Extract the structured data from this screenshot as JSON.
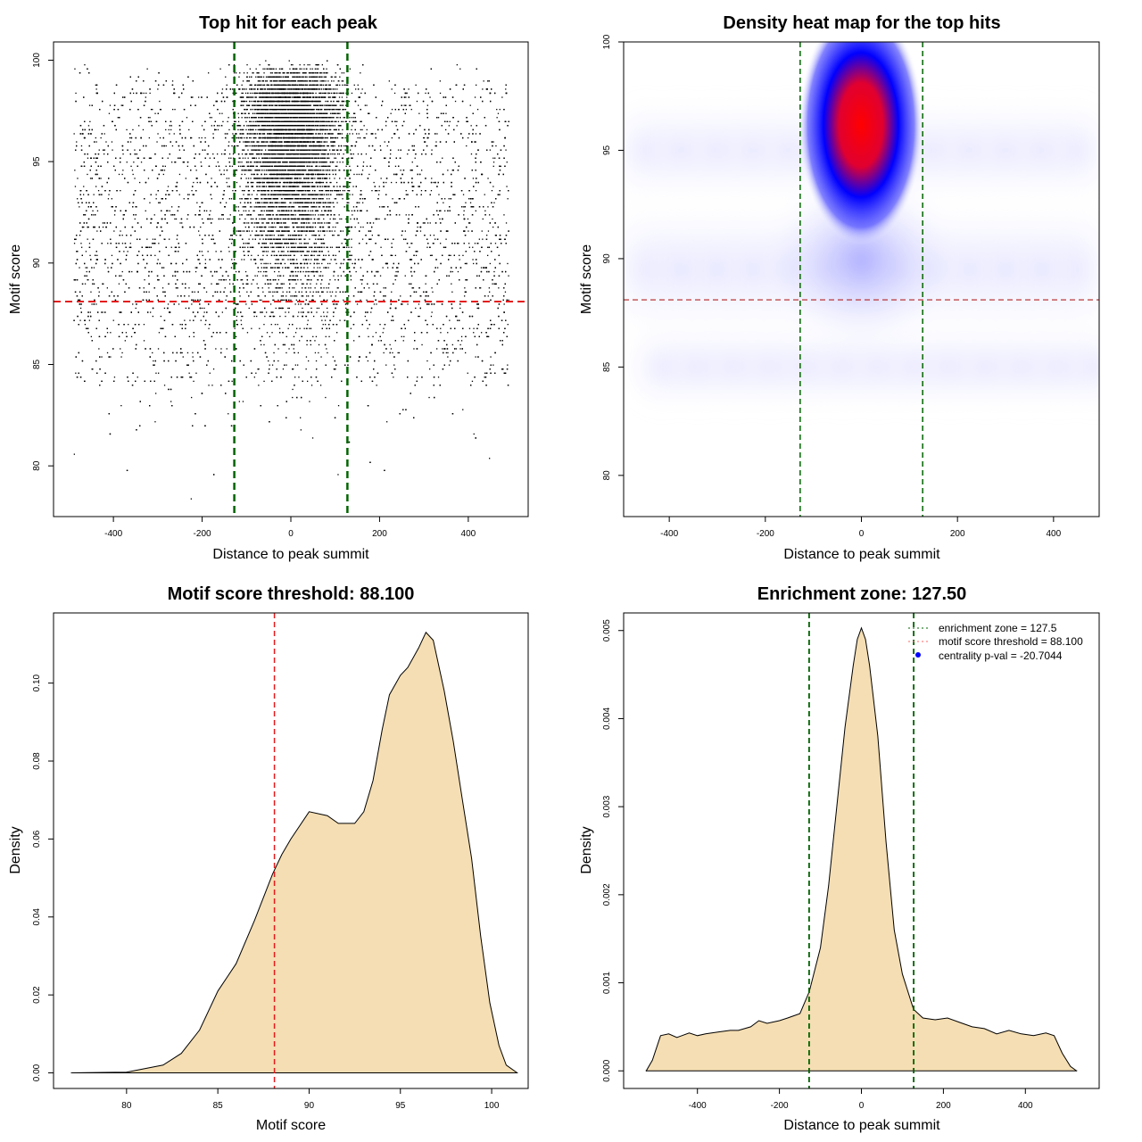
{
  "chart_data": [
    {
      "type": "scatter",
      "title": "Top hit for each peak",
      "xlabel": "Distance to peak summit",
      "ylabel": "Motif score",
      "xticks": [
        -400,
        -200,
        0,
        200,
        400
      ],
      "yticks": [
        80,
        85,
        90,
        95,
        100
      ],
      "xlim": [
        -535,
        535
      ],
      "ylim": [
        77.5,
        100.9
      ],
      "points_description_omitted": false,
      "distribution": {
        "x_range": [
          -490,
          490
        ],
        "y_range": [
          78.3,
          100
        ],
        "center_cluster_x_sd": 60,
        "center_cluster_y_range": [
          88,
          100
        ]
      },
      "reference_lines": {
        "enrichment_zone": [
          -127.5,
          127.5
        ],
        "motif_score_threshold": 88.1
      },
      "colors": {
        "points": "#000000",
        "zone": "#006400",
        "threshold": "#e41a1c"
      }
    },
    {
      "type": "heatmap",
      "title": "Density heat map for the top hits",
      "xlabel": "Distance to peak summit",
      "ylabel": "Motif score",
      "xticks": [
        -400,
        -200,
        0,
        200,
        400
      ],
      "yticks": [
        80,
        85,
        90,
        95,
        100
      ],
      "xlim": [
        -495,
        495
      ],
      "ylim": [
        78.1,
        100
      ],
      "peak": {
        "x": 0,
        "y": 96.4
      },
      "reference_lines": {
        "enrichment_zone": [
          -127.5,
          127.5
        ],
        "motif_score_threshold": 88.1
      },
      "colors": {
        "low": "#ffffff",
        "mid": "#0000ff",
        "high": "#ff0000",
        "zone": "#006400",
        "threshold": "#b22222"
      }
    },
    {
      "type": "area",
      "title": "Motif score threshold: 88.100",
      "xlabel": "Motif score",
      "ylabel": "Density",
      "xticks": [
        80,
        85,
        90,
        95,
        100
      ],
      "yticks": [
        "0.00",
        "0.02",
        "0.04",
        "0.06",
        "0.08",
        "0.10"
      ],
      "xlim": [
        76,
        102
      ],
      "ylim": [
        -0.004,
        0.118
      ],
      "x": [
        77,
        80,
        82,
        83,
        84,
        85,
        86,
        87,
        88,
        88.5,
        89,
        90,
        91,
        91.6,
        92.5,
        93,
        93.5,
        94,
        94.4,
        95,
        95.4,
        96,
        96.4,
        96.8,
        97.4,
        97.9,
        98.4,
        98.9,
        99.4,
        99.9,
        100.4,
        100.8,
        101.4
      ],
      "y": [
        0,
        0.0002,
        0.002,
        0.005,
        0.011,
        0.021,
        0.028,
        0.039,
        0.051,
        0.056,
        0.06,
        0.067,
        0.066,
        0.064,
        0.064,
        0.067,
        0.075,
        0.088,
        0.097,
        0.102,
        0.104,
        0.109,
        0.113,
        0.111,
        0.098,
        0.085,
        0.07,
        0.055,
        0.035,
        0.018,
        0.007,
        0.002,
        0
      ],
      "reference_lines": {
        "motif_score_threshold": 88.1
      },
      "colors": {
        "fill": "#f5deb3",
        "line": "#000000",
        "threshold": "#e41a1c"
      }
    },
    {
      "type": "area",
      "title": "Enrichment zone: 127.50",
      "xlabel": "Distance to peak summit",
      "ylabel": "Density",
      "xticks": [
        -400,
        -200,
        0,
        200,
        400
      ],
      "yticks": [
        "0.000",
        "0.001",
        "0.002",
        "0.003",
        "0.004",
        "0.005"
      ],
      "xlim": [
        -580,
        580
      ],
      "ylim": [
        -0.0002,
        0.0052
      ],
      "x": [
        -525,
        -510,
        -490,
        -470,
        -450,
        -420,
        -400,
        -380,
        -350,
        -320,
        -300,
        -270,
        -250,
        -230,
        -200,
        -180,
        -150,
        -127,
        -100,
        -80,
        -60,
        -40,
        -20,
        -10,
        0,
        10,
        20,
        40,
        60,
        80,
        100,
        127,
        150,
        180,
        210,
        240,
        270,
        300,
        330,
        360,
        390,
        420,
        450,
        470,
        490,
        510,
        525
      ],
      "y": [
        0,
        0.00012,
        0.0004,
        0.00042,
        0.00038,
        0.00043,
        0.0004,
        0.00042,
        0.00044,
        0.00046,
        0.00046,
        0.0005,
        0.00057,
        0.00054,
        0.00057,
        0.0006,
        0.00065,
        0.0009,
        0.0014,
        0.0021,
        0.003,
        0.0039,
        0.0046,
        0.0049,
        0.00503,
        0.0049,
        0.0046,
        0.0038,
        0.0026,
        0.0016,
        0.0011,
        0.0007,
        0.0006,
        0.00058,
        0.0006,
        0.00055,
        0.0005,
        0.00048,
        0.00042,
        0.00046,
        0.00042,
        0.0004,
        0.00043,
        0.0004,
        0.0002,
        5e-05,
        0
      ],
      "reference_lines": {
        "enrichment_zone": [
          -127.5,
          127.5
        ]
      },
      "legend": {
        "position": "top-right",
        "entries": [
          "enrichment zone = 127.5",
          "motif score threshold = 88.100",
          "centrality p-val = -20.7044"
        ]
      },
      "colors": {
        "fill": "#f5deb3",
        "line": "#000000",
        "zone": "#006400",
        "threshold": "#ff6666",
        "pval": "#0000ff"
      }
    }
  ]
}
